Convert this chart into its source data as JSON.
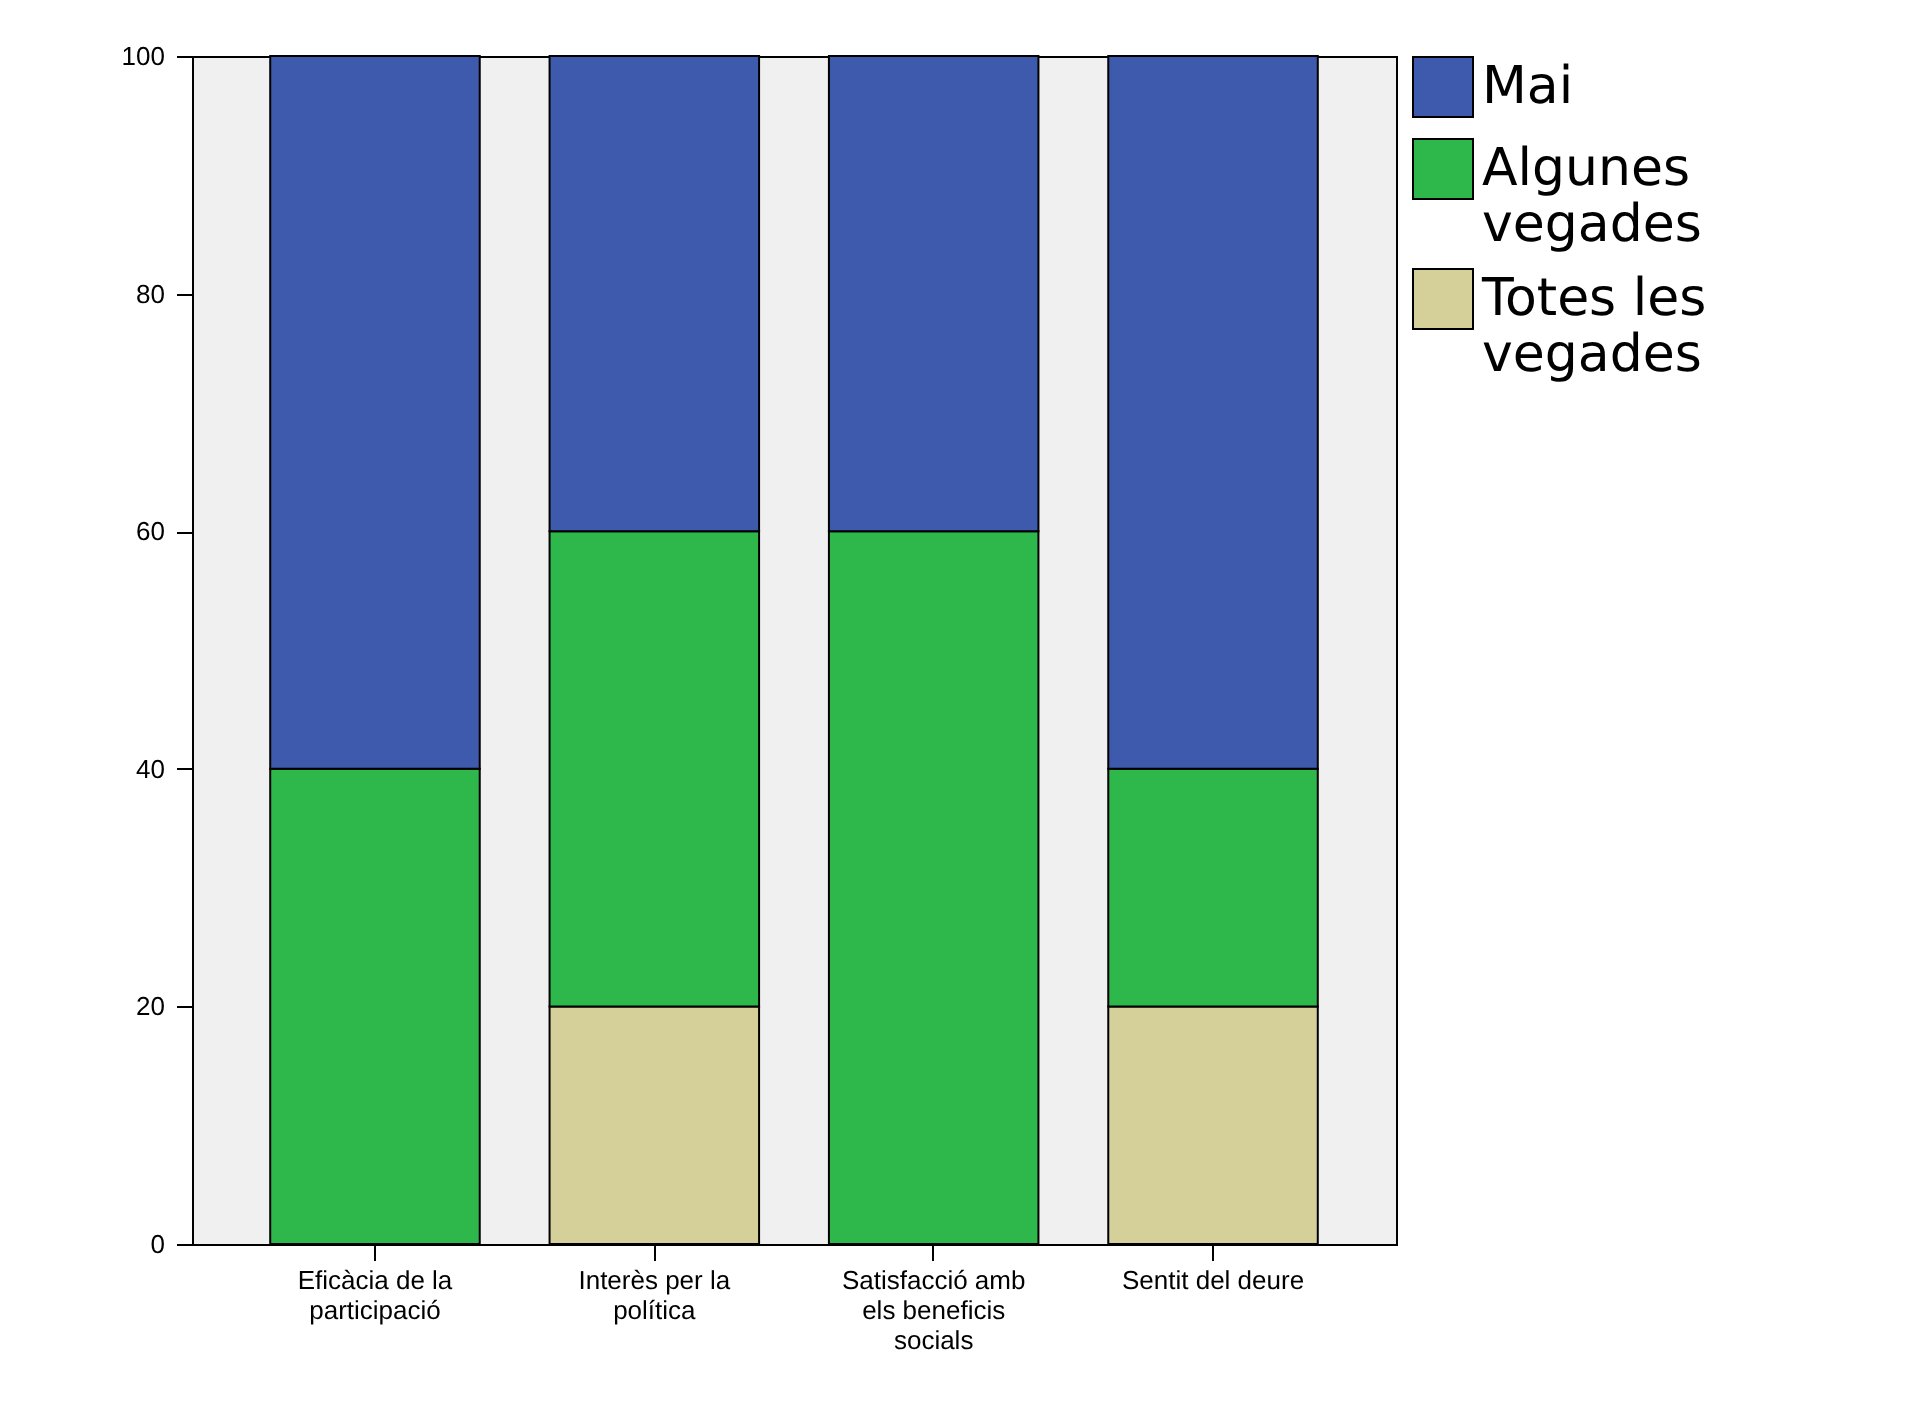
{
  "chart_data": {
    "type": "bar",
    "stacked": true,
    "categories": [
      "Eficàcia de la participació",
      "Interès per la política",
      "Satisfacció amb els beneficis socials",
      "Sentit del deure"
    ],
    "series": [
      {
        "name": "Totes les vegades",
        "color": "#d5cf9a",
        "values": [
          0,
          20,
          0,
          20
        ]
      },
      {
        "name": "Algunes vegades",
        "color": "#2eb84b",
        "values": [
          40,
          40,
          60,
          20
        ]
      },
      {
        "name": "Mai",
        "color": "#3d5aad",
        "values": [
          60,
          40,
          40,
          60
        ]
      }
    ],
    "ylim": [
      0,
      100
    ],
    "yticks": [
      0,
      20,
      40,
      60,
      80,
      100
    ],
    "grid": false,
    "legend": "top right"
  }
}
